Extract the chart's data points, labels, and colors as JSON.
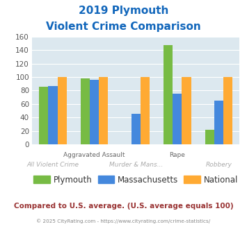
{
  "title_line1": "2019 Plymouth",
  "title_line2": "Violent Crime Comparison",
  "categories": [
    "All Violent Crime",
    "Aggravated Assault",
    "Murder & Mans...",
    "Rape",
    "Robbery"
  ],
  "top_labels": {
    "1": "Aggravated Assault",
    "3": "Rape"
  },
  "bottom_labels": {
    "0": "All Violent Crime",
    "2": "Murder & Mans...",
    "4": "Robbery"
  },
  "series": {
    "Plymouth": [
      86,
      98,
      0,
      147,
      22
    ],
    "Massachusetts": [
      87,
      96,
      45,
      75,
      65
    ],
    "National": [
      100,
      100,
      100,
      100,
      100
    ]
  },
  "colors": {
    "Plymouth": "#77bb44",
    "Massachusetts": "#4488dd",
    "National": "#ffaa33"
  },
  "ylim": [
    0,
    160
  ],
  "yticks": [
    0,
    20,
    40,
    60,
    80,
    100,
    120,
    140,
    160
  ],
  "plot_bg": "#dce8ef",
  "footer_text": "Compared to U.S. average. (U.S. average equals 100)",
  "copyright_text": "© 2025 CityRating.com - https://www.cityrating.com/crime-statistics/",
  "title_color": "#1166bb",
  "footer_color": "#993333",
  "copyright_color": "#888888",
  "xlabel_top_color": "#666666",
  "xlabel_bottom_color": "#aaaaaa"
}
